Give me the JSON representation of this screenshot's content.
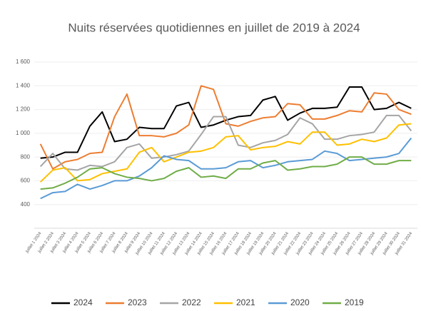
{
  "chart_data": {
    "type": "line",
    "title": "Nuits réservées quotidiennes en juillet de 2019 à 2024",
    "categories": [
      "juillet 1 2024",
      "juillet 2 2024",
      "juillet 3 2024",
      "juillet 4 2024",
      "juillet 5 2024",
      "juillet 6 2024",
      "juillet 7 2024",
      "juillet 8 2024",
      "juillet 9 2024",
      "juillet 10 2024",
      "juillet 11 2024",
      "juillet 12 2024",
      "juillet 13 2024",
      "juillet 14 2024",
      "juillet 15 2024",
      "juillet 16 2024",
      "juillet 17 2024",
      "juillet 18 2024",
      "juillet 19 2024",
      "juillet 20 2024",
      "juillet 21 2024",
      "juillet 22 2024",
      "juillet 23 2024",
      "juillet 24 2024",
      "juillet 25 2024",
      "juillet 26 2024",
      "juillet 27 2024",
      "juillet 28 2024",
      "juillet 29 2024",
      "juillet 30 2024",
      "juillet 31 2024"
    ],
    "series": [
      {
        "name": "2024",
        "color": "#000000",
        "values": [
          790,
          800,
          840,
          840,
          1060,
          1180,
          930,
          950,
          1050,
          1040,
          1040,
          1230,
          1260,
          1050,
          1070,
          1110,
          1140,
          1150,
          1280,
          1310,
          1110,
          1170,
          1210,
          1210,
          1220,
          1390,
          1390,
          1200,
          1210,
          1260,
          1210
        ]
      },
      {
        "name": "2023",
        "color": "#ed7d31",
        "values": [
          910,
          700,
          760,
          780,
          830,
          840,
          1140,
          1330,
          980,
          980,
          970,
          1000,
          1070,
          1400,
          1370,
          1080,
          1060,
          1100,
          1130,
          1140,
          1250,
          1240,
          1120,
          1120,
          1150,
          1190,
          1180,
          1340,
          1330,
          1200,
          1160
        ]
      },
      {
        "name": "2022",
        "color": "#a5a5a5",
        "values": [
          720,
          830,
          700,
          690,
          730,
          720,
          760,
          880,
          910,
          790,
          800,
          820,
          850,
          990,
          1140,
          1140,
          900,
          880,
          920,
          940,
          990,
          1130,
          1080,
          950,
          950,
          980,
          990,
          1010,
          1150,
          1150,
          1020
        ]
      },
      {
        "name": "2021",
        "color": "#ffc000",
        "values": [
          590,
          690,
          710,
          600,
          610,
          660,
          680,
          700,
          840,
          880,
          760,
          800,
          840,
          850,
          880,
          970,
          980,
          860,
          880,
          890,
          930,
          910,
          1010,
          1010,
          900,
          910,
          950,
          930,
          960,
          1070,
          1080
        ]
      },
      {
        "name": "2020",
        "color": "#5b9bd5",
        "values": [
          450,
          500,
          510,
          570,
          530,
          560,
          600,
          600,
          640,
          710,
          810,
          780,
          770,
          700,
          700,
          710,
          760,
          770,
          710,
          730,
          760,
          770,
          780,
          850,
          830,
          770,
          780,
          790,
          800,
          830,
          960
        ]
      },
      {
        "name": "2019",
        "color": "#70ad47",
        "values": [
          530,
          540,
          580,
          630,
          700,
          710,
          660,
          630,
          620,
          600,
          620,
          680,
          710,
          630,
          640,
          620,
          700,
          700,
          750,
          770,
          690,
          700,
          720,
          720,
          740,
          800,
          800,
          740,
          740,
          770,
          770
        ]
      }
    ],
    "ylim": [
      200,
      1600
    ],
    "yticks": [
      400,
      600,
      800,
      {
        "value": 1000,
        "label": "1 000"
      },
      {
        "value": 1200,
        "label": "1 200"
      },
      {
        "value": 1400,
        "label": "1 400"
      },
      {
        "value": 1600,
        "label": "1 600"
      }
    ],
    "grid": true,
    "legend": "bottom"
  }
}
